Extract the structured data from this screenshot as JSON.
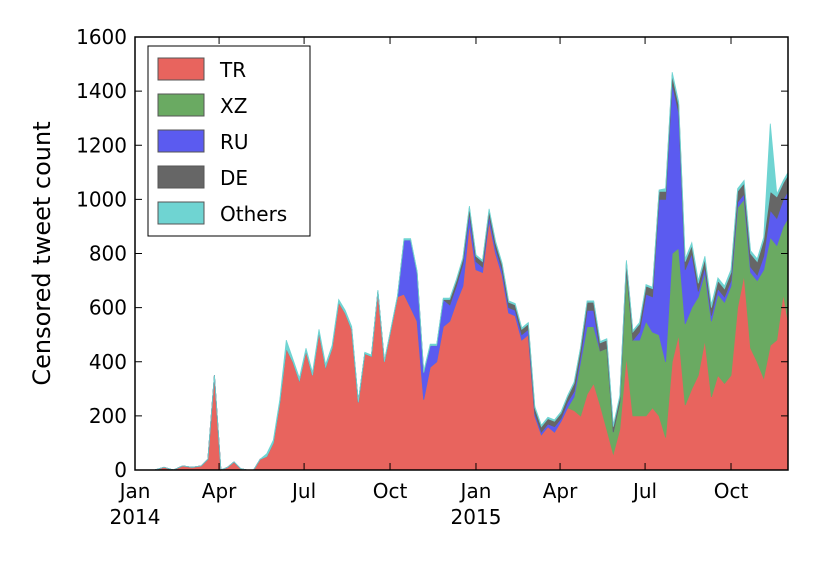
{
  "chart_data": {
    "type": "area",
    "stacked": true,
    "ylabel": "Censored tweet count",
    "xlabel": "",
    "ylim": [
      0,
      1600
    ],
    "yticks": [
      0,
      200,
      400,
      600,
      800,
      1000,
      1200,
      1400,
      1600
    ],
    "xlim": [
      "2014-01-01",
      "2015-12-01"
    ],
    "xticks": [
      {
        "date": "2014-01-01",
        "label": "Jan",
        "year_label": "2014"
      },
      {
        "date": "2014-04-01",
        "label": "Apr",
        "year_label": ""
      },
      {
        "date": "2014-07-01",
        "label": "Jul",
        "year_label": ""
      },
      {
        "date": "2014-10-01",
        "label": "Oct",
        "year_label": ""
      },
      {
        "date": "2015-01-01",
        "label": "Jan",
        "year_label": "2015"
      },
      {
        "date": "2015-04-01",
        "label": "Apr",
        "year_label": ""
      },
      {
        "date": "2015-07-01",
        "label": "Jul",
        "year_label": ""
      },
      {
        "date": "2015-10-01",
        "label": "Oct",
        "year_label": ""
      }
    ],
    "legend_position": "upper-left",
    "x": [
      "2014-01-22",
      "2014-02-01",
      "2014-02-11",
      "2014-02-21",
      "2014-03-03",
      "2014-03-13",
      "2014-03-20",
      "2014-03-27",
      "2014-04-03",
      "2014-04-10",
      "2014-04-17",
      "2014-04-24",
      "2014-05-01",
      "2014-05-08",
      "2014-05-15",
      "2014-05-22",
      "2014-05-29",
      "2014-06-05",
      "2014-06-12",
      "2014-06-19",
      "2014-06-26",
      "2014-07-03",
      "2014-07-10",
      "2014-07-17",
      "2014-07-24",
      "2014-07-31",
      "2014-08-07",
      "2014-08-14",
      "2014-08-21",
      "2014-08-28",
      "2014-09-04",
      "2014-09-11",
      "2014-09-18",
      "2014-09-25",
      "2014-10-02",
      "2014-10-09",
      "2014-10-16",
      "2014-10-23",
      "2014-10-30",
      "2014-11-06",
      "2014-11-13",
      "2014-11-20",
      "2014-11-27",
      "2014-12-04",
      "2014-12-11",
      "2014-12-18",
      "2014-12-25",
      "2015-01-01",
      "2015-01-08",
      "2015-01-15",
      "2015-01-22",
      "2015-01-29",
      "2015-02-05",
      "2015-02-12",
      "2015-02-19",
      "2015-02-26",
      "2015-03-05",
      "2015-03-12",
      "2015-03-19",
      "2015-03-26",
      "2015-04-02",
      "2015-04-09",
      "2015-04-16",
      "2015-04-23",
      "2015-04-30",
      "2015-05-07",
      "2015-05-14",
      "2015-05-21",
      "2015-05-28",
      "2015-06-04",
      "2015-06-11",
      "2015-06-18",
      "2015-06-25",
      "2015-07-02",
      "2015-07-09",
      "2015-07-16",
      "2015-07-23",
      "2015-07-30",
      "2015-08-06",
      "2015-08-13",
      "2015-08-20",
      "2015-08-27",
      "2015-09-03",
      "2015-09-10",
      "2015-09-17",
      "2015-09-24",
      "2015-10-01",
      "2015-10-08",
      "2015-10-15",
      "2015-10-22",
      "2015-10-29",
      "2015-11-05",
      "2015-11-12",
      "2015-11-19",
      "2015-11-26",
      "2015-12-01"
    ],
    "series": [
      {
        "name": "TR",
        "color": "#e8645e",
        "values": [
          0,
          10,
          0,
          15,
          10,
          15,
          40,
          350,
          0,
          10,
          30,
          5,
          0,
          0,
          40,
          50,
          100,
          250,
          450,
          400,
          330,
          440,
          350,
          510,
          380,
          450,
          620,
          580,
          520,
          250,
          430,
          420,
          660,
          400,
          520,
          640,
          650,
          600,
          550,
          260,
          380,
          400,
          530,
          550,
          620,
          680,
          910,
          740,
          730,
          920,
          800,
          720,
          580,
          570,
          480,
          500,
          200,
          130,
          160,
          140,
          180,
          230,
          220,
          200,
          280,
          320,
          240,
          150,
          60,
          150,
          420,
          200,
          200,
          200,
          230,
          200,
          120,
          400,
          500,
          240,
          300,
          350,
          480,
          270,
          350,
          320,
          350,
          600,
          720,
          450,
          400,
          340,
          460,
          480,
          650,
          550
        ]
      },
      {
        "name": "XZ",
        "color": "#6aaa62",
        "values": [
          0,
          0,
          0,
          0,
          0,
          0,
          0,
          0,
          0,
          0,
          0,
          0,
          0,
          0,
          0,
          0,
          0,
          0,
          0,
          0,
          0,
          0,
          0,
          0,
          0,
          0,
          0,
          0,
          0,
          0,
          0,
          0,
          0,
          0,
          0,
          0,
          0,
          0,
          0,
          0,
          0,
          0,
          0,
          0,
          0,
          0,
          0,
          0,
          0,
          0,
          0,
          0,
          0,
          0,
          0,
          0,
          0,
          0,
          0,
          0,
          0,
          0,
          50,
          200,
          250,
          210,
          200,
          300,
          80,
          100,
          320,
          280,
          280,
          350,
          280,
          300,
          280,
          400,
          320,
          300,
          300,
          290,
          250,
          280,
          300,
          300,
          330,
          370,
          280,
          280,
          300,
          400,
          400,
          350,
          250,
          380
        ]
      },
      {
        "name": "RU",
        "color": "#5b5bf0",
        "values": [
          0,
          0,
          0,
          0,
          0,
          0,
          0,
          0,
          0,
          0,
          0,
          0,
          0,
          0,
          0,
          0,
          0,
          0,
          0,
          0,
          0,
          0,
          0,
          0,
          0,
          0,
          0,
          0,
          0,
          0,
          0,
          0,
          0,
          0,
          0,
          0,
          200,
          250,
          180,
          100,
          80,
          60,
          100,
          60,
          60,
          80,
          40,
          30,
          20,
          20,
          20,
          20,
          20,
          20,
          20,
          20,
          10,
          10,
          10,
          20,
          10,
          20,
          20,
          20,
          60,
          60,
          0,
          0,
          0,
          0,
          0,
          0,
          30,
          100,
          130,
          500,
          600,
          630,
          500,
          200,
          200,
          20,
          20,
          20,
          20,
          20,
          20,
          20,
          20,
          20,
          20,
          50,
          100,
          100,
          100,
          100
        ]
      },
      {
        "name": "DE",
        "color": "#666666",
        "values": [
          0,
          0,
          0,
          0,
          0,
          0,
          0,
          0,
          0,
          0,
          0,
          0,
          0,
          0,
          0,
          0,
          0,
          0,
          0,
          0,
          0,
          0,
          0,
          0,
          0,
          0,
          0,
          0,
          0,
          0,
          0,
          0,
          0,
          0,
          0,
          0,
          0,
          0,
          0,
          0,
          0,
          0,
          0,
          20,
          20,
          20,
          20,
          20,
          20,
          20,
          20,
          20,
          20,
          20,
          20,
          20,
          20,
          20,
          20,
          20,
          20,
          20,
          30,
          30,
          30,
          30,
          30,
          30,
          20,
          20,
          30,
          30,
          30,
          30,
          30,
          30,
          30,
          30,
          30,
          30,
          30,
          30,
          30,
          30,
          30,
          30,
          30,
          40,
          40,
          50,
          50,
          60,
          70,
          80,
          60,
          60
        ]
      },
      {
        "name": "Others",
        "color": "#6fd4d2",
        "values": [
          0,
          0,
          0,
          0,
          0,
          0,
          0,
          0,
          0,
          0,
          0,
          0,
          0,
          0,
          0,
          10,
          10,
          10,
          30,
          10,
          10,
          10,
          10,
          10,
          10,
          10,
          10,
          10,
          10,
          5,
          5,
          5,
          5,
          5,
          5,
          5,
          5,
          5,
          5,
          5,
          5,
          5,
          5,
          5,
          5,
          5,
          5,
          5,
          5,
          5,
          5,
          5,
          5,
          5,
          5,
          5,
          5,
          5,
          5,
          5,
          5,
          5,
          5,
          5,
          5,
          5,
          5,
          5,
          5,
          5,
          5,
          5,
          5,
          5,
          5,
          5,
          10,
          10,
          10,
          10,
          10,
          10,
          10,
          10,
          10,
          10,
          10,
          10,
          10,
          10,
          10,
          10,
          250,
          10,
          10,
          10
        ]
      }
    ]
  }
}
